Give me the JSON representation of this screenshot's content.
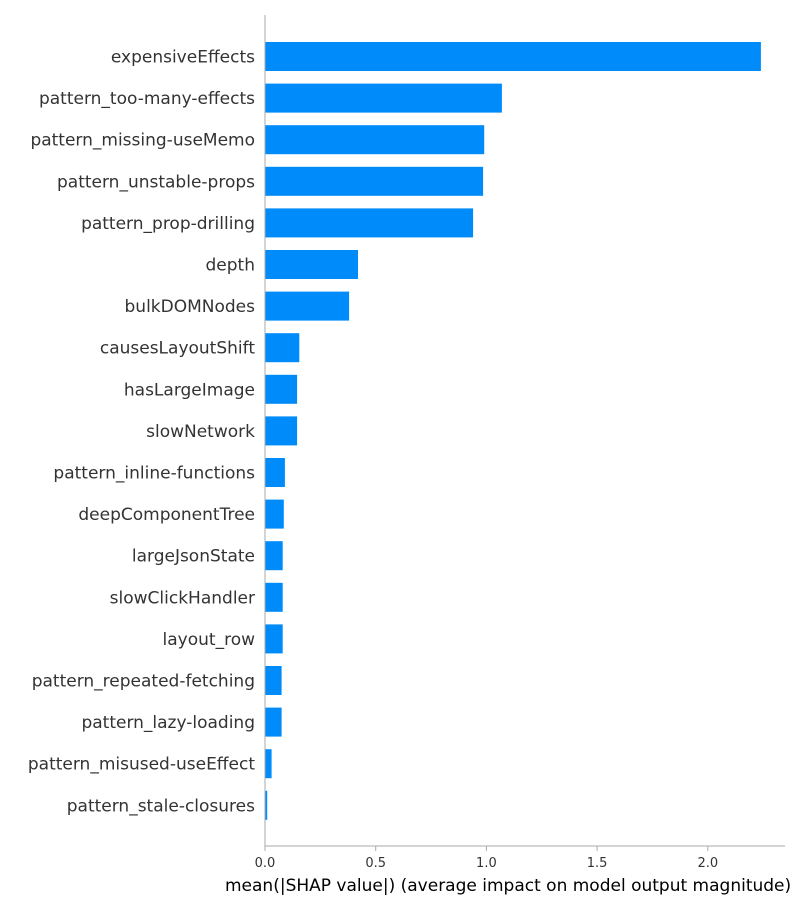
{
  "chart_data": {
    "type": "bar",
    "orientation": "horizontal",
    "categories": [
      "expensiveEffects",
      "pattern_too-many-effects",
      "pattern_missing-useMemo",
      "pattern_unstable-props",
      "pattern_prop-drilling",
      "depth",
      "bulkDOMNodes",
      "causesLayoutShift",
      "hasLargeImage",
      "slowNetwork",
      "pattern_inline-functions",
      "deepComponentTree",
      "largeJsonState",
      "slowClickHandler",
      "layout_row",
      "pattern_repeated-fetching",
      "pattern_lazy-loading",
      "pattern_misused-useEffect",
      "pattern_stale-closures"
    ],
    "values": [
      2.24,
      1.07,
      0.99,
      0.985,
      0.94,
      0.42,
      0.38,
      0.155,
      0.145,
      0.145,
      0.09,
      0.085,
      0.08,
      0.08,
      0.08,
      0.075,
      0.075,
      0.03,
      0.01
    ],
    "title": "",
    "xlabel": "mean(|SHAP value|) (average impact on model output magnitude)",
    "ylabel": "",
    "xlim": [
      0,
      2.36
    ],
    "xticks": [
      "0.0",
      "0.5",
      "1.0",
      "1.5",
      "2.0"
    ],
    "grid": false,
    "legend": "none",
    "bar_color": "#008bfb",
    "axis_color": "#aaaaaa"
  }
}
